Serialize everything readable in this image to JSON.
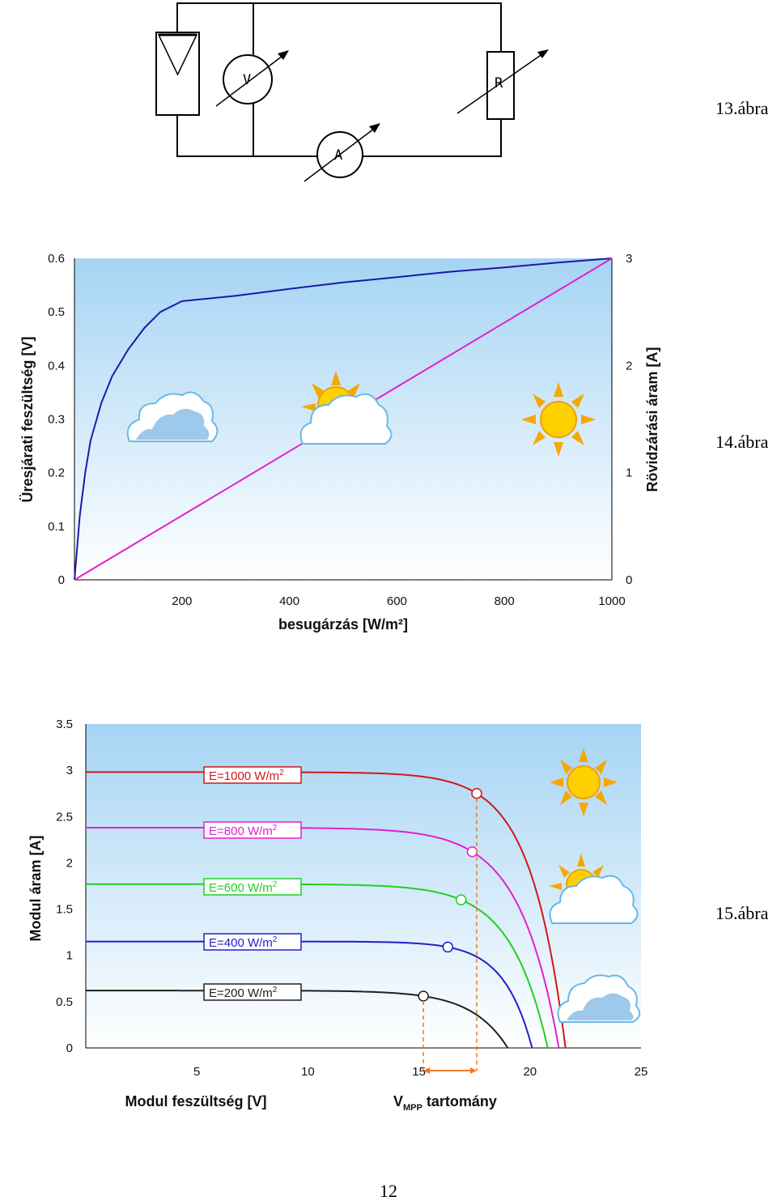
{
  "captions": {
    "fig13": "13.ábra",
    "fig14": "14.ábra",
    "fig15": "15.ábra",
    "page_number": "12"
  },
  "circuit": {
    "voltmeter": "V",
    "ammeter": "A",
    "resistor": "R"
  },
  "chart_data": [
    {
      "type": "line",
      "xlabel": "besugárzás  [W/m²]",
      "ylabel_left": "Üresjárati feszültség [V]",
      "ylabel_right": "Rövidzárási áram [A]",
      "xlim": [
        0,
        1000
      ],
      "ylim_left": [
        0,
        0.6
      ],
      "ylim_right": [
        0,
        3
      ],
      "x_ticks": [
        "200",
        "400",
        "600",
        "800",
        "1000"
      ],
      "y_left_ticks": [
        "0",
        "0.1",
        "0.2",
        "0.3",
        "0.4",
        "0.5",
        "0.6"
      ],
      "y_right_ticks": [
        "0",
        "1",
        "2",
        "3"
      ],
      "grid": false,
      "series": [
        {
          "axis": "left",
          "color": "#1a1aa8",
          "x": [
            0,
            5,
            10,
            20,
            30,
            50,
            70,
            100,
            130,
            160,
            200,
            300,
            400,
            500,
            600,
            700,
            800,
            900,
            1000
          ],
          "y": [
            0,
            0.06,
            0.12,
            0.2,
            0.26,
            0.33,
            0.38,
            0.43,
            0.47,
            0.5,
            0.52,
            0.53,
            0.543,
            0.555,
            0.565,
            0.575,
            0.583,
            0.592,
            0.6
          ]
        },
        {
          "axis": "right",
          "color": "#e020d0",
          "x": [
            0,
            1000
          ],
          "y": [
            0,
            3
          ]
        }
      ]
    },
    {
      "type": "line",
      "xlabel": "Modul feszültség [V]",
      "ylabel": "Modul áram [A]",
      "annotation": "V",
      "annotation_sub": "MPP",
      "annotation_rest": " tartomány",
      "xlim": [
        0,
        25
      ],
      "ylim": [
        0,
        3.5
      ],
      "x_ticks": [
        "5",
        "10",
        "15",
        "20",
        "25"
      ],
      "y_ticks": [
        "0",
        "0.5",
        "1",
        "1.5",
        "2",
        "2.5",
        "3",
        "3.5"
      ],
      "vmpp_range": [
        15.2,
        17.6
      ],
      "grid": false,
      "series": [
        {
          "name": "E=1000 W/m",
          "sup": "2",
          "color": "#d01818",
          "isc": 2.98,
          "voc": 21.6,
          "mpp_v": 17.6,
          "mpp_i": 2.75
        },
        {
          "name": "E=800 W/m",
          "sup": "2",
          "color": "#e020d0",
          "isc": 2.38,
          "voc": 21.3,
          "mpp_v": 17.4,
          "mpp_i": 2.12
        },
        {
          "name": "E=600 W/m",
          "sup": "2",
          "color": "#20d020",
          "isc": 1.77,
          "voc": 20.8,
          "mpp_v": 16.9,
          "mpp_i": 1.6
        },
        {
          "name": "E=400 W/m",
          "sup": "2",
          "color": "#2020c8",
          "isc": 1.15,
          "voc": 20.1,
          "mpp_v": 16.3,
          "mpp_i": 1.09
        },
        {
          "name": "E=200 W/m",
          "sup": "2",
          "color": "#202020",
          "isc": 0.62,
          "voc": 19.0,
          "mpp_v": 15.2,
          "mpp_i": 0.56
        }
      ]
    }
  ]
}
